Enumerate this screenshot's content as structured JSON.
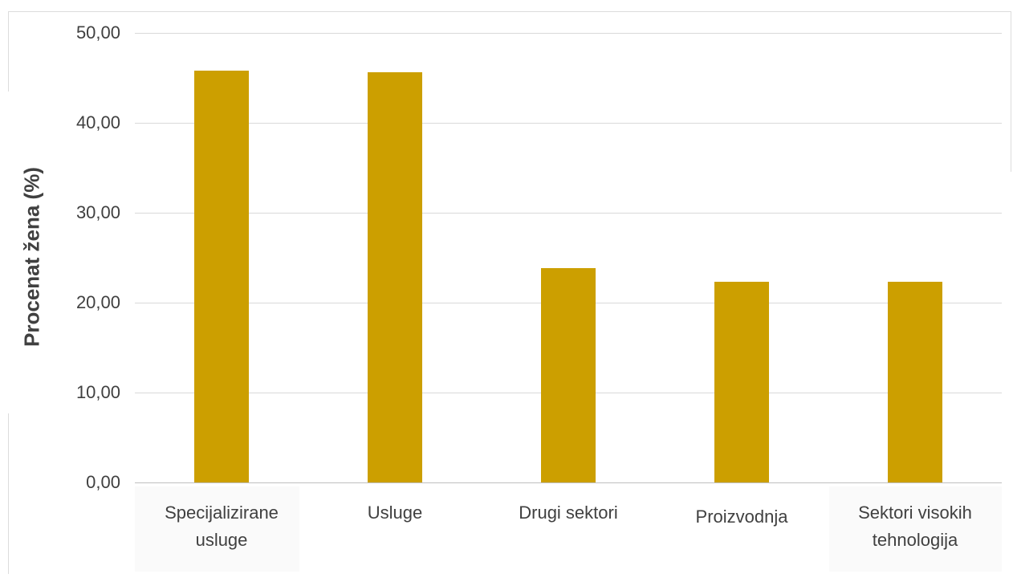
{
  "chart_data": {
    "type": "bar",
    "categories": [
      "Specijalizirane usluge",
      "Usluge",
      "Drugi sektori",
      "Proizvodnja",
      "Sektori visokih tehnologija"
    ],
    "category_lines": [
      [
        "Specijalizirane",
        "usluge"
      ],
      [
        "Usluge"
      ],
      [
        "Drugi sektori"
      ],
      [
        "Proizvodnja"
      ],
      [
        "Sektori visokih",
        "tehnologija"
      ]
    ],
    "values": [
      45.8,
      45.6,
      23.8,
      22.3,
      22.3
    ],
    "title": "",
    "xlabel": "",
    "ylabel": "Procenat žena (%)",
    "ylim": [
      0,
      50
    ],
    "yticks": [
      "0,00",
      "10,00",
      "20,00",
      "30,00",
      "40,00",
      "50,00"
    ],
    "bar_color": "#cc9f00",
    "grid": true,
    "legend": "none"
  }
}
